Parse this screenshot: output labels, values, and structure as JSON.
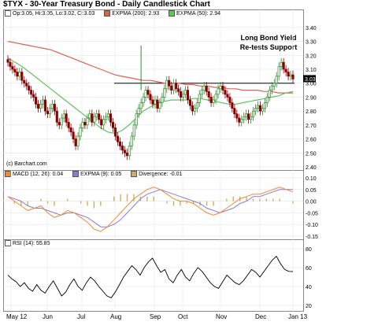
{
  "title": "$TYX - 30-Year Treasury Bond - Daily Candlestick Chart",
  "price_legend": {
    "ohlc": "Op:3.05, Hi:3.05, Lo:3.02, Cl:3.03",
    "expma200": "EXPMA (200): 2.93",
    "expma50": "EXPMA (50): 2.94"
  },
  "copyright": "(c) Barchart.com",
  "annotation": [
    "Long Bond Yield",
    "Re-tests Support"
  ],
  "last_value_label": "3.03",
  "macd_legend": {
    "macd": "MACD (12, 26): 0.04",
    "expma9": "EXPMA (9): 0.05",
    "divergence": "Divergence: -0.01"
  },
  "rsi_legend": "RSI (14): 55.85",
  "colors": {
    "up": "#2e8b2e",
    "down": "#8b0000",
    "expma200": "#e06050",
    "expma50": "#5cc65c",
    "macd": "#f08a2a",
    "signal": "#8a7ad8",
    "divergence": "#c8b060",
    "rsi": "#000000"
  },
  "chart_data": [
    {
      "type": "candlestick",
      "title": "$TYX - 30-Year Treasury Bond - Daily Candlestick Chart",
      "ylim": [
        2.4,
        3.45
      ],
      "yticks": [
        "3.40",
        "3.30",
        "3.20",
        "3.10",
        "3.00",
        "2.90",
        "2.80",
        "2.70",
        "2.60",
        "2.50",
        "2.40"
      ],
      "xticks": [
        "May 12",
        "Jun",
        "Jul",
        "Aug",
        "Sep",
        "Oct",
        "Nov",
        "Dec",
        "Jan 13"
      ],
      "close_series": [
        3.15,
        3.12,
        3.1,
        3.08,
        3.05,
        3.08,
        3.02,
        3.0,
        2.98,
        2.95,
        2.92,
        2.9,
        2.85,
        2.82,
        2.85,
        2.88,
        2.8,
        2.78,
        2.82,
        2.85,
        2.8,
        2.72,
        2.7,
        2.75,
        2.78,
        2.72,
        2.68,
        2.65,
        2.6,
        2.55,
        2.62,
        2.68,
        2.72,
        2.7,
        2.75,
        2.78,
        2.72,
        2.76,
        2.78,
        2.74,
        2.7,
        2.74,
        2.76,
        2.78,
        2.72,
        2.68,
        2.62,
        2.58,
        2.55,
        2.52,
        2.5,
        2.48,
        2.55,
        2.62,
        2.7,
        2.78,
        2.82,
        2.86,
        2.9,
        2.95,
        2.92,
        2.88,
        2.85,
        2.88,
        2.82,
        2.86,
        2.9,
        2.96,
        3.02,
        2.98,
        2.95,
        3.0,
        2.96,
        2.94,
        2.9,
        2.92,
        2.95,
        2.88,
        2.84,
        2.8,
        2.82,
        2.86,
        2.92,
        2.95,
        2.98,
        2.94,
        2.9,
        2.86,
        2.88,
        2.92,
        2.96,
        2.98,
        2.95,
        2.92,
        2.9,
        2.86,
        2.82,
        2.78,
        2.75,
        2.72,
        2.74,
        2.76,
        2.78,
        2.74,
        2.76,
        2.8,
        2.82,
        2.84,
        2.8,
        2.82,
        2.86,
        2.9,
        2.95,
        2.98,
        3.0,
        3.05,
        3.12,
        3.15,
        3.1,
        3.08,
        3.05,
        3.06,
        3.03
      ],
      "expma200": [
        3.3,
        3.29,
        3.28,
        3.27,
        3.26,
        3.25,
        3.24,
        3.22,
        3.2,
        3.18,
        3.16,
        3.14,
        3.12,
        3.1,
        3.08,
        3.06,
        3.05,
        3.04,
        3.03,
        3.02,
        3.02,
        3.01,
        3.0,
        3.0,
        3.0,
        2.99,
        2.99,
        2.98,
        2.98,
        2.97,
        2.97,
        2.96,
        2.96,
        2.95,
        2.95,
        2.95,
        2.94,
        2.94,
        2.93,
        2.93,
        2.93
      ],
      "expma50": [
        3.18,
        3.15,
        3.12,
        3.08,
        3.04,
        3.0,
        2.96,
        2.92,
        2.88,
        2.84,
        2.8,
        2.76,
        2.72,
        2.68,
        2.65,
        2.64,
        2.66,
        2.7,
        2.75,
        2.8,
        2.83,
        2.86,
        2.87,
        2.88,
        2.88,
        2.88,
        2.89,
        2.89,
        2.88,
        2.87,
        2.86,
        2.85,
        2.85,
        2.86,
        2.87,
        2.88,
        2.89,
        2.9,
        2.91,
        2.93,
        2.94
      ],
      "support_level": 3.0
    },
    {
      "type": "line",
      "title": "MACD (12, 26)",
      "ylim": [
        -0.15,
        0.1
      ],
      "yticks": [
        "0.10",
        "0.05",
        "0.00",
        "-0.05",
        "-0.10",
        "-0.15"
      ],
      "series": [
        {
          "name": "MACD (12, 26)",
          "values": [
            0.02,
            0.0,
            -0.02,
            -0.04,
            -0.03,
            -0.02,
            -0.05,
            -0.07,
            -0.06,
            -0.04,
            -0.05,
            -0.07,
            -0.09,
            -0.12,
            -0.13,
            -0.11,
            -0.08,
            -0.05,
            -0.02,
            0.01,
            0.03,
            0.05,
            0.06,
            0.05,
            0.03,
            0.01,
            0.0,
            0.0,
            -0.01,
            -0.03,
            -0.05,
            -0.06,
            -0.05,
            -0.03,
            -0.01,
            0.01,
            0.02,
            0.03,
            0.03,
            0.04,
            0.05,
            0.06,
            0.05,
            0.04
          ]
        },
        {
          "name": "EXPMA (9)",
          "values": [
            0.02,
            0.01,
            0.0,
            -0.02,
            -0.03,
            -0.03,
            -0.04,
            -0.05,
            -0.06,
            -0.05,
            -0.05,
            -0.06,
            -0.07,
            -0.09,
            -0.11,
            -0.11,
            -0.1,
            -0.08,
            -0.05,
            -0.02,
            0.01,
            0.03,
            0.04,
            0.05,
            0.04,
            0.03,
            0.02,
            0.01,
            0.0,
            -0.01,
            -0.03,
            -0.04,
            -0.05,
            -0.04,
            -0.03,
            -0.01,
            0.0,
            0.02,
            0.02,
            0.03,
            0.04,
            0.05,
            0.05,
            0.05
          ]
        },
        {
          "name": "Divergence",
          "values": [
            0.0,
            -0.01,
            -0.02,
            -0.02,
            0.0,
            0.01,
            -0.01,
            -0.02,
            0.0,
            0.01,
            0.0,
            -0.01,
            -0.02,
            -0.03,
            -0.02,
            0.0,
            0.02,
            0.03,
            0.03,
            0.03,
            0.02,
            0.02,
            0.02,
            0.0,
            -0.01,
            -0.02,
            -0.02,
            -0.01,
            -0.01,
            -0.02,
            -0.02,
            -0.02,
            0.0,
            0.01,
            0.02,
            0.02,
            0.02,
            0.01,
            0.01,
            0.01,
            0.01,
            0.01,
            0.0,
            -0.01
          ]
        }
      ]
    },
    {
      "type": "line",
      "title": "RSI (14)",
      "ylim": [
        20,
        80
      ],
      "yticks": [
        "80",
        "60",
        "40",
        "20"
      ],
      "series": [
        {
          "name": "RSI (14)",
          "values": [
            52,
            48,
            45,
            40,
            44,
            38,
            35,
            42,
            36,
            33,
            40,
            46,
            38,
            30,
            34,
            42,
            48,
            40,
            36,
            44,
            50,
            46,
            40,
            35,
            30,
            28,
            34,
            42,
            50,
            56,
            62,
            58,
            52,
            60,
            66,
            70,
            62,
            55,
            58,
            48,
            44,
            52,
            58,
            50,
            46,
            54,
            60,
            56,
            50,
            44,
            40,
            38,
            45,
            52,
            48,
            44,
            42,
            46,
            52,
            58,
            55,
            50,
            56,
            62,
            68,
            72,
            64,
            58,
            56,
            55.85
          ]
        }
      ]
    }
  ]
}
